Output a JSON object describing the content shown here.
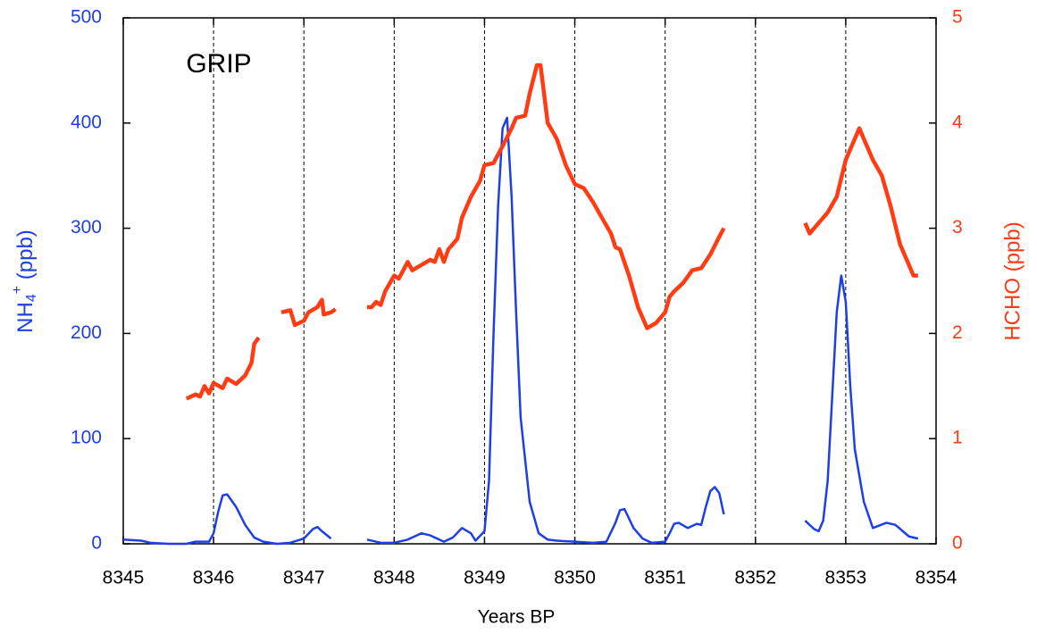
{
  "chart_data": {
    "type": "line",
    "xlabel": "Years BP",
    "ylabel": {
      "main": "NH",
      "sub": "4",
      "sup": "+",
      "unit": " (ppb)"
    },
    "y2label": "HCHO (ppb)",
    "annotation": "GRIP",
    "xlim": [
      8345,
      8354
    ],
    "xticks": [
      8345,
      8346,
      8347,
      8348,
      8349,
      8350,
      8351,
      8352,
      8353,
      8354
    ],
    "ylim": [
      0,
      500
    ],
    "yticks": [
      0,
      100,
      200,
      300,
      400,
      500
    ],
    "y2lim": [
      0,
      5
    ],
    "y2ticks": [
      0,
      1,
      2,
      3,
      4,
      5
    ],
    "xgrid": "dashed",
    "series": [
      {
        "name": "NH4+",
        "color": "#1f3fe6",
        "axis": "y",
        "x": [
          8345.0,
          8345.2,
          8345.3,
          8345.5,
          8345.7,
          8345.8,
          8345.95,
          8346.0,
          8346.05,
          8346.1,
          8346.15,
          8346.25,
          8346.35,
          8346.45,
          8346.55,
          8346.7,
          8346.85,
          8347.0,
          8347.1,
          8347.15,
          8347.2,
          8347.3,
          null,
          8347.7,
          8347.85,
          8348.0,
          8348.15,
          8348.3,
          8348.4,
          8348.55,
          8348.65,
          8348.75,
          8348.85,
          8348.9,
          8349.0,
          8349.05,
          8349.1,
          8349.15,
          8349.2,
          8349.25,
          8349.3,
          8349.35,
          8349.4,
          8349.5,
          8349.6,
          8349.7,
          8349.8,
          8350.0,
          8350.2,
          8350.35,
          8350.45,
          8350.5,
          8350.55,
          8350.65,
          8350.75,
          8350.85,
          8351.0,
          8351.05,
          8351.1,
          8351.15,
          8351.25,
          8351.35,
          8351.4,
          8351.45,
          8351.5,
          8351.55,
          8351.6,
          8351.65,
          null,
          8352.55,
          8352.65,
          8352.7,
          8352.75,
          8352.8,
          8352.85,
          8352.9,
          8352.95,
          8353.0,
          8353.05,
          8353.1,
          8353.2,
          8353.3,
          8353.45,
          8353.55,
          8353.7,
          8353.8
        ],
        "values": [
          4,
          3,
          1,
          0,
          0,
          2,
          2,
          10,
          30,
          46,
          47,
          35,
          18,
          6,
          2,
          0,
          1,
          5,
          14,
          16,
          12,
          5,
          null,
          4,
          1,
          1,
          4,
          10,
          8,
          2,
          6,
          15,
          10,
          3,
          12,
          60,
          200,
          320,
          395,
          405,
          330,
          220,
          120,
          40,
          10,
          4,
          3,
          2,
          1,
          2,
          20,
          32,
          33,
          15,
          5,
          1,
          2,
          10,
          19,
          20,
          15,
          19,
          18,
          35,
          50,
          54,
          48,
          28,
          null,
          22,
          14,
          12,
          22,
          60,
          140,
          220,
          255,
          230,
          150,
          90,
          40,
          15,
          20,
          18,
          7,
          5
        ]
      },
      {
        "name": "HCHO",
        "color": "#ff3c14",
        "axis": "y2",
        "x": [
          8345.7,
          8345.8,
          8345.85,
          8345.9,
          8345.95,
          8346.0,
          8346.1,
          8346.15,
          8346.25,
          8346.35,
          8346.42,
          8346.45,
          8346.5,
          null,
          8346.75,
          8346.85,
          8346.9,
          8347.0,
          8347.05,
          8347.15,
          8347.2,
          8347.22,
          8347.3,
          8347.35,
          null,
          8347.7,
          8347.75,
          8347.8,
          8347.85,
          8347.9,
          8348.0,
          8348.05,
          8348.15,
          8348.2,
          8348.3,
          8348.4,
          8348.45,
          8348.5,
          8348.55,
          8348.6,
          8348.7,
          8348.75,
          8348.85,
          8348.95,
          8349.0,
          8349.1,
          8349.2,
          8349.3,
          8349.35,
          8349.45,
          8349.5,
          8349.58,
          8349.62,
          8349.7,
          8349.8,
          8349.9,
          8350.0,
          8350.1,
          8350.2,
          8350.3,
          8350.4,
          8350.45,
          8350.5,
          8350.6,
          8350.7,
          8350.8,
          8350.9,
          8351.0,
          8351.05,
          8351.1,
          8351.2,
          8351.3,
          8351.4,
          8351.5,
          8351.6,
          8351.65,
          null,
          8352.55,
          8352.6,
          8352.7,
          8352.8,
          8352.9,
          8353.0,
          8353.1,
          8353.15,
          8353.2,
          8353.3,
          8353.4,
          8353.5,
          8353.6,
          8353.7,
          8353.75,
          8353.8
        ],
        "values": [
          1.38,
          1.42,
          1.4,
          1.5,
          1.43,
          1.53,
          1.48,
          1.57,
          1.52,
          1.6,
          1.72,
          1.9,
          1.96,
          null,
          2.2,
          2.22,
          2.08,
          2.12,
          2.2,
          2.25,
          2.32,
          2.18,
          2.2,
          2.23,
          null,
          2.25,
          2.25,
          2.3,
          2.27,
          2.4,
          2.55,
          2.52,
          2.68,
          2.6,
          2.65,
          2.7,
          2.68,
          2.8,
          2.68,
          2.8,
          2.9,
          3.1,
          3.3,
          3.45,
          3.6,
          3.62,
          3.78,
          3.95,
          4.05,
          4.07,
          4.28,
          4.55,
          4.55,
          4.0,
          3.85,
          3.6,
          3.42,
          3.38,
          3.25,
          3.1,
          2.95,
          2.82,
          2.8,
          2.55,
          2.25,
          2.05,
          2.1,
          2.2,
          2.35,
          2.4,
          2.48,
          2.6,
          2.62,
          2.75,
          2.92,
          3.0,
          null,
          3.05,
          2.95,
          3.05,
          3.15,
          3.3,
          3.65,
          3.85,
          3.95,
          3.85,
          3.65,
          3.5,
          3.2,
          2.85,
          2.65,
          2.55,
          2.55
        ]
      }
    ]
  }
}
